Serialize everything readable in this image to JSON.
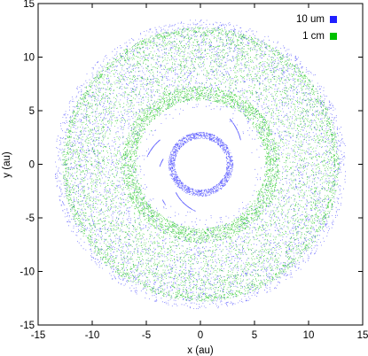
{
  "chart_data": {
    "type": "scatter",
    "title": "",
    "xlabel": "x (au)",
    "ylabel": "y (au)",
    "xlim": [
      -15,
      15
    ],
    "ylim": [
      -15,
      15
    ],
    "xticks": [
      -15,
      -10,
      -5,
      0,
      5,
      10,
      15
    ],
    "yticks": [
      -15,
      -10,
      -5,
      0,
      5,
      10,
      15
    ],
    "xtick_labels": [
      "-15",
      "-10",
      "-5",
      "0",
      "5",
      "10",
      "15"
    ],
    "ytick_labels": [
      "-15",
      "-10",
      "-5",
      "0",
      "5",
      "10",
      "15"
    ],
    "grid": false,
    "legend_position": "top-right",
    "series": [
      {
        "name": "10 um",
        "color": "#2020ff",
        "marker": "dot",
        "structure": [
          {
            "feature": "inner ring",
            "r_min": 2.4,
            "r_max": 3.0
          },
          {
            "feature": "inner spiral arcs",
            "r_min": 3.5,
            "r_max": 5.0
          },
          {
            "feature": "diffuse disk",
            "r_min": 4.5,
            "r_max": 13.5
          }
        ]
      },
      {
        "name": "1 cm",
        "color": "#00c000",
        "marker": "dot",
        "structure": [
          {
            "feature": "dense band",
            "r_min": 6.0,
            "r_max": 7.3
          },
          {
            "feature": "outer rim",
            "r_min": 12.3,
            "r_max": 12.8
          },
          {
            "feature": "diffuse disk",
            "r_min": 5.5,
            "r_max": 12.5
          }
        ]
      }
    ]
  }
}
